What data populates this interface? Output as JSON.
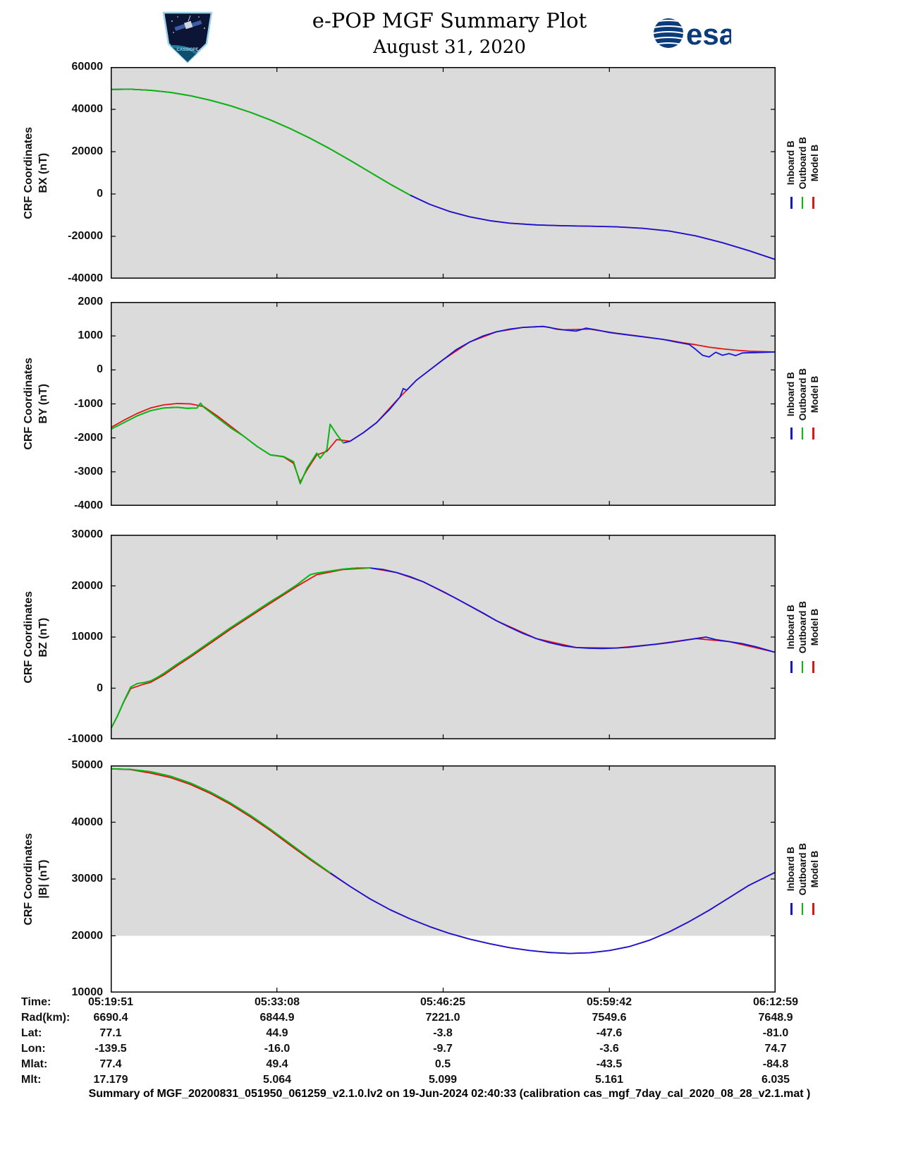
{
  "header": {
    "title": "e-POP MGF Summary Plot",
    "date": "August 31, 2020",
    "esa_label": "esa",
    "patch_label": "CASSIOPE"
  },
  "legend": {
    "items": [
      {
        "label": "Inboard B",
        "color": "#1515d8"
      },
      {
        "label": "Outboard B",
        "color": "#00c400"
      },
      {
        "label": "Model B",
        "color": "#e61212"
      }
    ]
  },
  "table": {
    "rows": [
      {
        "label": "Time:",
        "values": [
          "05:19:51",
          "05:33:08",
          "05:46:25",
          "05:59:42",
          "06:12:59"
        ]
      },
      {
        "label": "Rad(km):",
        "values": [
          "6690.4",
          "6844.9",
          "7221.0",
          "7549.6",
          "7648.9"
        ]
      },
      {
        "label": "Lat:",
        "values": [
          "77.1",
          "44.9",
          "-3.8",
          "-47.6",
          "-81.0"
        ]
      },
      {
        "label": "Lon:",
        "values": [
          "-139.5",
          "-16.0",
          "-9.7",
          "-3.6",
          "74.7"
        ]
      },
      {
        "label": "Mlat:",
        "values": [
          "77.4",
          "49.4",
          "0.5",
          "-43.5",
          "-84.8"
        ]
      },
      {
        "label": "Mlt:",
        "values": [
          "17.179",
          "5.064",
          "5.099",
          "5.161",
          "6.035"
        ]
      }
    ]
  },
  "footer": "Summary of MGF_20200831_051950_061259_v2.1.0.lv2 on 19-Jun-2024 02:40:33 (calibration cas_mgf_7day_cal_2020_08_28_v2.1.mat )",
  "chart_data": [
    {
      "type": "line",
      "ylabel_line1": "CRF Coordinates",
      "ylabel_line2": "BX (nT)",
      "ylim": [
        -40000,
        60000
      ],
      "yticks": [
        -40000,
        -20000,
        0,
        20000,
        40000,
        60000
      ],
      "xticks": [
        0,
        0.25,
        0.5,
        0.75,
        1
      ],
      "series": [
        {
          "name": "Model B",
          "color": "#e61212",
          "x": [
            0,
            0.03,
            0.06,
            0.09,
            0.12,
            0.15,
            0.18,
            0.21,
            0.24,
            0.27,
            0.3,
            0.33,
            0.36,
            0.39,
            0.42,
            0.45,
            0.48,
            0.51,
            0.54,
            0.57,
            0.6,
            0.64,
            0.68,
            0.72,
            0.76,
            0.8,
            0.84,
            0.88,
            0.92,
            0.96,
            1.0
          ],
          "y": [
            49400,
            49500,
            49000,
            48000,
            46400,
            44300,
            41700,
            38600,
            35000,
            30900,
            26300,
            21300,
            15900,
            10300,
            4700,
            -500,
            -4900,
            -8300,
            -10800,
            -12600,
            -13800,
            -14600,
            -15000,
            -15200,
            -15500,
            -16200,
            -17500,
            -19800,
            -23000,
            -26800,
            -31000
          ]
        },
        {
          "name": "Inboard B",
          "color": "#1515d8",
          "x": [
            0,
            0.03,
            0.06,
            0.09,
            0.12,
            0.15,
            0.18,
            0.21,
            0.24,
            0.27,
            0.3,
            0.33,
            0.36,
            0.39,
            0.42,
            0.45,
            0.48,
            0.51,
            0.54,
            0.57,
            0.6,
            0.64,
            0.68,
            0.72,
            0.76,
            0.8,
            0.84,
            0.88,
            0.92,
            0.96,
            1.0
          ],
          "y": [
            49400,
            49500,
            49000,
            48000,
            46400,
            44300,
            41700,
            38600,
            35000,
            30900,
            26300,
            21300,
            15900,
            10300,
            4700,
            -500,
            -4900,
            -8300,
            -10800,
            -12600,
            -13800,
            -14600,
            -15000,
            -15200,
            -15500,
            -16200,
            -17500,
            -19800,
            -23000,
            -26800,
            -31000
          ]
        },
        {
          "name": "Outboard B",
          "color": "#00c400",
          "x": [
            0,
            0.03,
            0.06,
            0.09,
            0.12,
            0.15,
            0.18,
            0.21,
            0.24,
            0.27,
            0.3,
            0.33,
            0.36,
            0.39,
            0.42,
            0.45
          ],
          "y": [
            49400,
            49500,
            49000,
            48000,
            46400,
            44300,
            41700,
            38600,
            35000,
            30900,
            26300,
            21300,
            15900,
            10300,
            4700,
            -500
          ]
        }
      ]
    },
    {
      "type": "line",
      "ylabel_line1": "CRF Coordinates",
      "ylabel_line2": "BY (nT)",
      "ylim": [
        -4000,
        2000
      ],
      "yticks": [
        -4000,
        -3000,
        -2000,
        -1000,
        0,
        1000,
        2000
      ],
      "xticks": [
        0,
        0.25,
        0.5,
        0.75,
        1
      ],
      "series": [
        {
          "name": "Model B",
          "color": "#e61212",
          "x": [
            0,
            0.02,
            0.04,
            0.06,
            0.08,
            0.1,
            0.12,
            0.14,
            0.16,
            0.18,
            0.2,
            0.22,
            0.24,
            0.26,
            0.275,
            0.285,
            0.295,
            0.31,
            0.325,
            0.34,
            0.36,
            0.38,
            0.4,
            0.43,
            0.46,
            0.5,
            0.54,
            0.58,
            0.62,
            0.65,
            0.68,
            0.72,
            0.76,
            0.8,
            0.84,
            0.86,
            0.88,
            0.9,
            0.92,
            0.94,
            0.96,
            1.0
          ],
          "y": [
            -1700,
            -1480,
            -1280,
            -1120,
            -1030,
            -990,
            -1000,
            -1080,
            -1350,
            -1650,
            -1950,
            -2250,
            -2500,
            -2560,
            -2750,
            -3300,
            -2950,
            -2500,
            -2400,
            -2050,
            -2100,
            -1850,
            -1550,
            -900,
            -300,
            300,
            820,
            1120,
            1250,
            1280,
            1180,
            1200,
            1080,
            980,
            870,
            800,
            740,
            670,
            620,
            580,
            550,
            525
          ]
        },
        {
          "name": "Inboard B",
          "color": "#1515d8",
          "x": [
            0,
            0.02,
            0.04,
            0.06,
            0.08,
            0.1,
            0.115,
            0.13,
            0.135,
            0.14,
            0.16,
            0.18,
            0.2,
            0.22,
            0.24,
            0.26,
            0.275,
            0.285,
            0.295,
            0.3,
            0.31,
            0.315,
            0.325,
            0.33,
            0.34,
            0.35,
            0.36,
            0.38,
            0.4,
            0.42,
            0.435,
            0.44,
            0.445,
            0.46,
            0.48,
            0.5,
            0.52,
            0.54,
            0.56,
            0.58,
            0.6,
            0.62,
            0.64,
            0.65,
            0.66,
            0.67,
            0.68,
            0.7,
            0.715,
            0.73,
            0.75,
            0.77,
            0.79,
            0.81,
            0.83,
            0.85,
            0.87,
            0.88,
            0.89,
            0.9,
            0.91,
            0.92,
            0.93,
            0.94,
            0.95,
            0.97,
            1.0
          ],
          "y": [
            -1750,
            -1550,
            -1350,
            -1200,
            -1120,
            -1100,
            -1130,
            -1120,
            -980,
            -1100,
            -1400,
            -1700,
            -1950,
            -2250,
            -2500,
            -2550,
            -2700,
            -3350,
            -2900,
            -2750,
            -2450,
            -2600,
            -2350,
            -1600,
            -1900,
            -2150,
            -2100,
            -1850,
            -1550,
            -1150,
            -800,
            -550,
            -600,
            -300,
            0,
            300,
            600,
            820,
            1000,
            1120,
            1200,
            1250,
            1270,
            1280,
            1250,
            1200,
            1180,
            1140,
            1230,
            1180,
            1100,
            1050,
            1000,
            950,
            900,
            820,
            750,
            600,
            430,
            380,
            520,
            430,
            480,
            420,
            500,
            510,
            530
          ]
        },
        {
          "name": "Outboard B",
          "color": "#00c400",
          "x": [
            0,
            0.02,
            0.04,
            0.06,
            0.08,
            0.1,
            0.115,
            0.13,
            0.135,
            0.14,
            0.16,
            0.18,
            0.2,
            0.22,
            0.24,
            0.26,
            0.275,
            0.285,
            0.295,
            0.3,
            0.31,
            0.315,
            0.325,
            0.33,
            0.34,
            0.35
          ],
          "y": [
            -1750,
            -1550,
            -1350,
            -1200,
            -1120,
            -1100,
            -1130,
            -1120,
            -980,
            -1100,
            -1400,
            -1700,
            -1950,
            -2250,
            -2500,
            -2550,
            -2700,
            -3350,
            -2900,
            -2750,
            -2450,
            -2600,
            -2350,
            -1600,
            -1900,
            -2150
          ]
        }
      ]
    },
    {
      "type": "line",
      "ylabel_line1": "CRF Coordinates",
      "ylabel_line2": "BZ (nT)",
      "ylim": [
        -10000,
        30000
      ],
      "yticks": [
        -10000,
        0,
        10000,
        20000,
        30000
      ],
      "xticks": [
        0,
        0.25,
        0.5,
        0.75,
        1
      ],
      "series": [
        {
          "name": "Model B",
          "color": "#e61212",
          "x": [
            0,
            0.01,
            0.02,
            0.03,
            0.05,
            0.06,
            0.08,
            0.1,
            0.12,
            0.14,
            0.16,
            0.18,
            0.2,
            0.24,
            0.28,
            0.31,
            0.35,
            0.39,
            0.43,
            0.47,
            0.52,
            0.58,
            0.64,
            0.7,
            0.76,
            0.82,
            0.88,
            0.93,
            1.0
          ],
          "y": [
            -8000,
            -5500,
            -2600,
            -100,
            800,
            1150,
            2600,
            4400,
            6100,
            7900,
            9700,
            11500,
            13200,
            16600,
            19900,
            22200,
            23200,
            23500,
            22600,
            20800,
            17500,
            13200,
            9700,
            7950,
            7850,
            8600,
            9700,
            9100,
            7000
          ]
        },
        {
          "name": "Inboard B",
          "color": "#1515d8",
          "x": [
            0,
            0.01,
            0.02,
            0.03,
            0.04,
            0.05,
            0.06,
            0.07,
            0.08,
            0.1,
            0.12,
            0.14,
            0.16,
            0.18,
            0.2,
            0.22,
            0.24,
            0.26,
            0.28,
            0.3,
            0.31,
            0.33,
            0.35,
            0.37,
            0.39,
            0.41,
            0.43,
            0.45,
            0.47,
            0.5,
            0.53,
            0.56,
            0.58,
            0.6,
            0.62,
            0.64,
            0.66,
            0.68,
            0.7,
            0.72,
            0.74,
            0.76,
            0.78,
            0.8,
            0.82,
            0.84,
            0.86,
            0.88,
            0.895,
            0.91,
            0.93,
            0.95,
            0.97,
            1.0
          ],
          "y": [
            -8000,
            -5500,
            -2500,
            200,
            900,
            1100,
            1400,
            2100,
            2900,
            4700,
            6400,
            8200,
            10000,
            11800,
            13500,
            15200,
            16900,
            18500,
            20200,
            22200,
            22500,
            22900,
            23300,
            23500,
            23500,
            23200,
            22600,
            21800,
            20800,
            18900,
            16800,
            14700,
            13200,
            11900,
            10700,
            9700,
            8900,
            8300,
            7950,
            7800,
            7750,
            7850,
            8000,
            8300,
            8600,
            8900,
            9300,
            9700,
            10000,
            9500,
            9100,
            8700,
            8100,
            7000
          ]
        },
        {
          "name": "Outboard B",
          "color": "#00c400",
          "x": [
            0,
            0.01,
            0.02,
            0.03,
            0.04,
            0.05,
            0.06,
            0.07,
            0.08,
            0.1,
            0.12,
            0.14,
            0.16,
            0.18,
            0.2,
            0.22,
            0.24,
            0.26,
            0.28,
            0.3,
            0.31,
            0.33,
            0.35,
            0.37,
            0.39
          ],
          "y": [
            -8000,
            -5500,
            -2500,
            200,
            900,
            1100,
            1400,
            2100,
            2900,
            4700,
            6400,
            8200,
            10000,
            11800,
            13500,
            15200,
            16900,
            18500,
            20200,
            22200,
            22500,
            22900,
            23300,
            23500,
            23500
          ]
        }
      ]
    },
    {
      "type": "line",
      "ylabel_line1": "CRF Coordinates",
      "ylabel_line2": "|B| (nT)",
      "ylim": [
        10000,
        50000
      ],
      "yticks": [
        10000,
        20000,
        30000,
        40000,
        50000
      ],
      "xticks": [
        0,
        0.25,
        0.5,
        0.75,
        1
      ],
      "bg_ymin": 20000,
      "xtick_labels": [
        "05:19:51",
        "05:33:08",
        "05:46:25",
        "05:59:42",
        "06:12:59"
      ],
      "series": [
        {
          "name": "Model B",
          "color": "#e61212",
          "x": [
            0,
            0.03,
            0.06,
            0.09,
            0.12,
            0.15,
            0.18,
            0.21,
            0.24,
            0.27,
            0.3,
            0.33,
            0.36,
            0.39,
            0.42,
            0.45,
            0.48,
            0.51,
            0.54,
            0.57,
            0.6,
            0.63,
            0.66,
            0.69,
            0.72,
            0.75,
            0.78,
            0.81,
            0.84,
            0.87,
            0.9,
            0.93,
            0.96,
            1.0
          ],
          "y": [
            49400,
            49250,
            48650,
            47850,
            46650,
            45050,
            43150,
            40950,
            38550,
            35950,
            33400,
            31000,
            28700,
            26500,
            24600,
            23000,
            21600,
            20400,
            19400,
            18600,
            17900,
            17400,
            17050,
            16900,
            17000,
            17400,
            18100,
            19200,
            20700,
            22500,
            24500,
            26700,
            28900,
            31200
          ]
        },
        {
          "name": "Inboard B",
          "color": "#1515d8",
          "x": [
            0,
            0.03,
            0.06,
            0.09,
            0.12,
            0.15,
            0.18,
            0.21,
            0.24,
            0.27,
            0.3,
            0.33,
            0.36,
            0.39,
            0.42,
            0.45,
            0.48,
            0.51,
            0.54,
            0.57,
            0.6,
            0.63,
            0.66,
            0.69,
            0.72,
            0.75,
            0.78,
            0.81,
            0.84,
            0.87,
            0.9,
            0.93,
            0.96,
            1.0
          ],
          "y": [
            49400,
            49300,
            48900,
            48100,
            46900,
            45300,
            43400,
            41200,
            38800,
            36200,
            33600,
            31100,
            28700,
            26500,
            24600,
            23000,
            21600,
            20400,
            19400,
            18600,
            17900,
            17400,
            17050,
            16900,
            17000,
            17400,
            18100,
            19200,
            20700,
            22500,
            24500,
            26700,
            28900,
            31200
          ]
        },
        {
          "name": "Outboard B",
          "color": "#00c400",
          "x": [
            0,
            0.03,
            0.06,
            0.09,
            0.12,
            0.15,
            0.18,
            0.21,
            0.24,
            0.27,
            0.3,
            0.33
          ],
          "y": [
            49400,
            49300,
            48900,
            48100,
            46900,
            45300,
            43400,
            41200,
            38800,
            36200,
            33600,
            31100
          ]
        }
      ]
    }
  ]
}
